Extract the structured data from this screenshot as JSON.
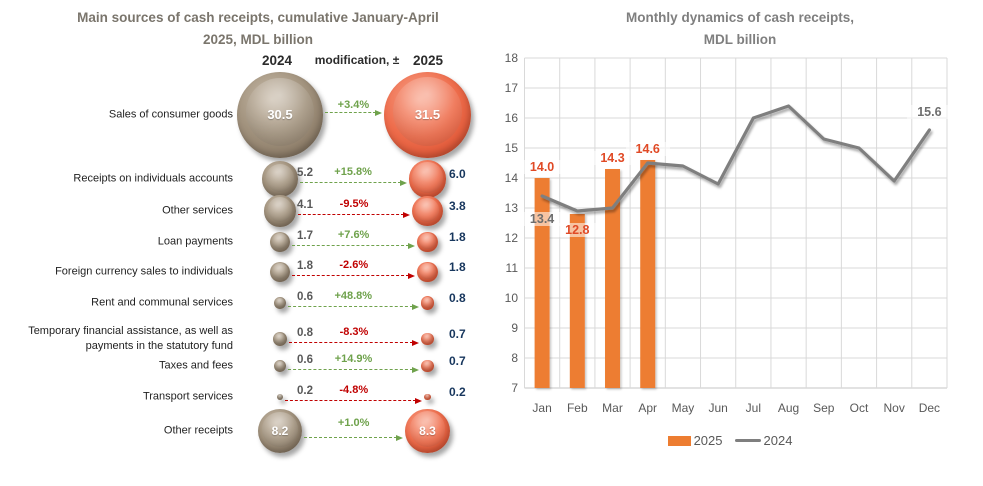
{
  "left_chart": {
    "title_lines": [
      "Main sources of cash receipts, cumulative January-April",
      "2025,  MDL billion"
    ],
    "col_headers": {
      "y2024": "2024",
      "modification": "modification, ±",
      "y2025": "2025"
    }
  },
  "right_chart": {
    "title_lines": [
      "Monthly dynamics of cash receipts,",
      "MDL billion"
    ],
    "legend": [
      {
        "label": "2025",
        "swatch": "bar-swatch",
        "color": "#ED7D31"
      },
      {
        "label": "2024",
        "swatch": "line-swatch",
        "color": "#7F7F7F"
      }
    ]
  },
  "chart_data": [
    {
      "type": "table",
      "subtype": "bubble-comparison",
      "title": "Main sources of cash receipts, cumulative January-April 2025, MDL billion",
      "columns": [
        "2024",
        "modification, ±",
        "2025"
      ],
      "unit": "MDL billion",
      "colors": {
        "bubble_2024": "#9A8B7A",
        "bubble_2025": "#EC6A4C",
        "positive": "#6FA24C",
        "negative": "#C00000"
      },
      "rows": [
        {
          "label": "Sales of consumer goods",
          "v2024": 30.5,
          "v2025": 31.5,
          "change_pct": "+3.4%",
          "direction": "up"
        },
        {
          "label": "Receipts on individuals accounts",
          "v2024": 5.2,
          "v2025": 6.0,
          "change_pct": "+15.8%",
          "direction": "up"
        },
        {
          "label": "Other services",
          "v2024": 4.1,
          "v2025": 3.8,
          "change_pct": "-9.5%",
          "direction": "down"
        },
        {
          "label": "Loan payments",
          "v2024": 1.7,
          "v2025": 1.8,
          "change_pct": "+7.6%",
          "direction": "up"
        },
        {
          "label": "Foreign currency sales to individuals",
          "v2024": 1.8,
          "v2025": 1.8,
          "change_pct": "-2.6%",
          "direction": "down"
        },
        {
          "label": "Rent and communal services",
          "v2024": 0.6,
          "v2025": 0.8,
          "change_pct": "+48.8%",
          "direction": "up"
        },
        {
          "label": "Temporary financial assistance, as well as\npayments in the statutory fund",
          "v2024": 0.8,
          "v2025": 0.7,
          "change_pct": "-8.3%",
          "direction": "down"
        },
        {
          "label": "Taxes and fees",
          "v2024": 0.6,
          "v2025": 0.7,
          "change_pct": "+14.9%",
          "direction": "up"
        },
        {
          "label": "Transport services",
          "v2024": 0.2,
          "v2025": 0.2,
          "change_pct": "-4.8%",
          "direction": "down"
        },
        {
          "label": "Other receipts",
          "v2024": 8.2,
          "v2025": 8.3,
          "change_pct": "+1.0%",
          "direction": "up"
        }
      ]
    },
    {
      "type": "bar",
      "subtype": "bar-with-line",
      "title": "Monthly dynamics of cash receipts, MDL billion",
      "categories": [
        "Jan",
        "Feb",
        "Mar",
        "Apr",
        "May",
        "Jun",
        "Jul",
        "Aug",
        "Sep",
        "Oct",
        "Nov",
        "Dec"
      ],
      "series": [
        {
          "name": "2025",
          "render": "bar",
          "color": "#ED7D31",
          "values": [
            14.0,
            12.8,
            14.3,
            14.6
          ],
          "data_labels": [
            "14.0",
            "12.8",
            "14.3",
            "14.6"
          ]
        },
        {
          "name": "2024",
          "render": "line",
          "color": "#7F7F7F",
          "values": [
            13.4,
            12.9,
            13.0,
            14.5,
            14.4,
            13.8,
            16.0,
            16.4,
            15.3,
            15.0,
            13.9,
            15.6
          ],
          "labeled_points": [
            {
              "category": "Jan",
              "label": "13.4"
            },
            {
              "category": "Dec",
              "label": "15.6"
            }
          ]
        }
      ],
      "ylim": [
        7,
        18
      ],
      "ytick_step": 1,
      "grid": true,
      "legend_position": "bottom"
    }
  ]
}
